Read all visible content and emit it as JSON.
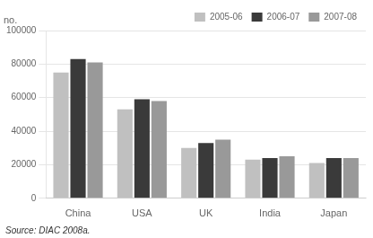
{
  "chart_data": {
    "type": "bar",
    "ylabel": "no.",
    "annotations": [
      "Source: DIAC 2008a."
    ],
    "categories": [
      "China",
      "USA",
      "UK",
      "India",
      "Japan"
    ],
    "series": [
      {
        "name": "2005-06",
        "color": "#c0c0c0",
        "values": [
          75000,
          53000,
          30000,
          23000,
          21000
        ]
      },
      {
        "name": "2006-07",
        "color": "#3a3a3a",
        "values": [
          83000,
          59000,
          33000,
          24000,
          24000
        ]
      },
      {
        "name": "2007-08",
        "color": "#999999",
        "values": [
          81000,
          58000,
          35000,
          25000,
          24000
        ]
      }
    ],
    "ylim": [
      0,
      100000
    ],
    "yticks": [
      0,
      20000,
      40000,
      60000,
      80000,
      100000
    ],
    "grid": true,
    "legend": "upper right"
  }
}
